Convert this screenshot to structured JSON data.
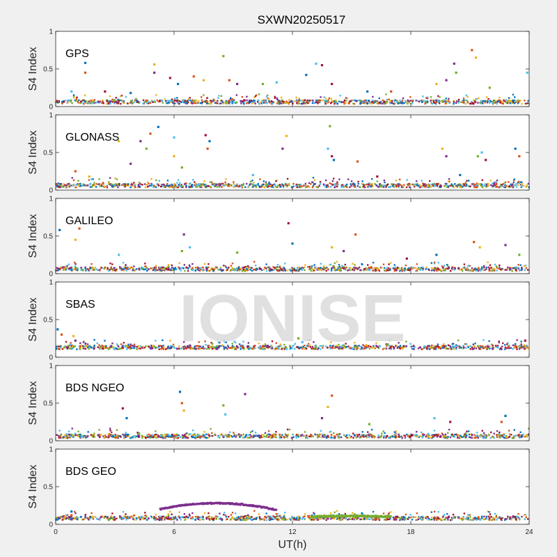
{
  "figure": {
    "title": "SXWN20250517",
    "watermark": "IONISE",
    "xlabel": "UT(h)"
  },
  "chart_data": [
    {
      "type": "scatter",
      "panel_label": "GPS",
      "ylabel": "S4 Index",
      "xlim": [
        0,
        24
      ],
      "ylim": [
        0,
        1
      ],
      "x_ticks": [
        "0",
        "6",
        "12",
        "18",
        "24"
      ],
      "y_ticks": [
        "0",
        "0.5",
        "1"
      ],
      "baseline": 0.06,
      "points": [
        [
          1.5,
          0.58
        ],
        [
          1.5,
          0.45
        ],
        [
          5.0,
          0.56
        ],
        [
          5.0,
          0.45
        ],
        [
          8.5,
          0.67
        ],
        [
          13.2,
          0.57
        ],
        [
          13.5,
          0.55
        ],
        [
          12.7,
          0.42
        ],
        [
          21.1,
          0.75
        ],
        [
          21.3,
          0.65
        ],
        [
          20.2,
          0.57
        ],
        [
          20.3,
          0.45
        ],
        [
          23.9,
          0.45
        ],
        [
          5.8,
          0.38
        ],
        [
          6.2,
          0.3
        ],
        [
          7.0,
          0.4
        ],
        [
          7.5,
          0.35
        ],
        [
          9.2,
          0.3
        ],
        [
          10.5,
          0.3
        ],
        [
          11.2,
          0.32
        ],
        [
          14.0,
          0.3
        ],
        [
          15.8,
          0.2
        ],
        [
          17.0,
          0.2
        ],
        [
          19.3,
          0.3
        ],
        [
          19.8,
          0.35
        ],
        [
          22.0,
          0.25
        ],
        [
          0.8,
          0.2
        ],
        [
          2.5,
          0.2
        ],
        [
          3.8,
          0.18
        ],
        [
          8.8,
          0.35
        ]
      ]
    },
    {
      "type": "scatter",
      "panel_label": "GLONASS",
      "ylabel": "S4 Index",
      "xlim": [
        0,
        24
      ],
      "ylim": [
        0,
        1
      ],
      "x_ticks": [
        "0",
        "6",
        "12",
        "18",
        "24"
      ],
      "y_ticks": [
        "0",
        "0.5",
        "1"
      ],
      "baseline": 0.06,
      "points": [
        [
          5.2,
          0.84
        ],
        [
          4.8,
          0.75
        ],
        [
          3.2,
          0.65
        ],
        [
          4.3,
          0.65
        ],
        [
          4.6,
          0.55
        ],
        [
          6.0,
          0.7
        ],
        [
          7.6,
          0.73
        ],
        [
          7.8,
          0.65
        ],
        [
          7.7,
          0.55
        ],
        [
          11.7,
          0.72
        ],
        [
          11.5,
          0.55
        ],
        [
          13.9,
          0.85
        ],
        [
          13.8,
          0.55
        ],
        [
          14.0,
          0.45
        ],
        [
          14.1,
          0.4
        ],
        [
          15.3,
          0.38
        ],
        [
          19.6,
          0.55
        ],
        [
          19.8,
          0.45
        ],
        [
          21.4,
          0.45
        ],
        [
          21.6,
          0.5
        ],
        [
          21.8,
          0.4
        ],
        [
          23.3,
          0.55
        ],
        [
          23.5,
          0.45
        ],
        [
          6.0,
          0.45
        ],
        [
          3.8,
          0.35
        ],
        [
          6.4,
          0.3
        ],
        [
          10.0,
          0.2
        ],
        [
          16.3,
          0.18
        ],
        [
          20.5,
          0.2
        ],
        [
          1.0,
          0.25
        ],
        [
          1.7,
          0.18
        ]
      ]
    },
    {
      "type": "scatter",
      "panel_label": "GALILEO",
      "ylabel": "S4 Index",
      "xlim": [
        0,
        24
      ],
      "ylim": [
        0,
        1
      ],
      "x_ticks": [
        "0",
        "6",
        "12",
        "18",
        "24"
      ],
      "y_ticks": [
        "0",
        "0.5",
        "1"
      ],
      "baseline": 0.06,
      "points": [
        [
          0.2,
          0.58
        ],
        [
          1.2,
          0.6
        ],
        [
          1.0,
          0.45
        ],
        [
          6.5,
          0.52
        ],
        [
          6.4,
          0.3
        ],
        [
          6.8,
          0.35
        ],
        [
          11.8,
          0.67
        ],
        [
          12.0,
          0.4
        ],
        [
          15.2,
          0.52
        ],
        [
          14.0,
          0.35
        ],
        [
          14.6,
          0.3
        ],
        [
          9.2,
          0.28
        ],
        [
          3.2,
          0.25
        ],
        [
          17.8,
          0.2
        ],
        [
          19.3,
          0.25
        ],
        [
          21.2,
          0.42
        ],
        [
          21.5,
          0.35
        ],
        [
          22.8,
          0.38
        ],
        [
          23.5,
          0.25
        ]
      ]
    },
    {
      "type": "scatter",
      "panel_label": "SBAS",
      "ylabel": "S4 Index",
      "xlim": [
        0,
        24
      ],
      "ylim": [
        0,
        1
      ],
      "x_ticks": [
        "0",
        "6",
        "12",
        "18",
        "24"
      ],
      "y_ticks": [
        "0",
        "0.5",
        "1"
      ],
      "baseline": 0.13,
      "points": [
        [
          0.1,
          0.37
        ],
        [
          0.3,
          0.3
        ],
        [
          0.9,
          0.28
        ],
        [
          1.0,
          0.22
        ],
        [
          12.3,
          0.25
        ],
        [
          12.5,
          0.2
        ],
        [
          23.8,
          0.22
        ]
      ]
    },
    {
      "type": "scatter",
      "panel_label": "BDS NGEO",
      "ylabel": "S4 Index",
      "xlim": [
        0,
        24
      ],
      "ylim": [
        0,
        1
      ],
      "x_ticks": [
        "0",
        "6",
        "12",
        "18",
        "24"
      ],
      "y_ticks": [
        "0",
        "0.5",
        "1"
      ],
      "baseline": 0.06,
      "points": [
        [
          6.3,
          0.65
        ],
        [
          6.4,
          0.5
        ],
        [
          6.5,
          0.4
        ],
        [
          9.6,
          0.62
        ],
        [
          8.5,
          0.47
        ],
        [
          8.6,
          0.35
        ],
        [
          3.4,
          0.43
        ],
        [
          3.6,
          0.3
        ],
        [
          14.0,
          0.6
        ],
        [
          13.8,
          0.45
        ],
        [
          13.5,
          0.3
        ],
        [
          15.9,
          0.22
        ],
        [
          19.2,
          0.3
        ],
        [
          20.0,
          0.25
        ],
        [
          22.8,
          0.33
        ],
        [
          22.6,
          0.25
        ]
      ]
    },
    {
      "type": "scatter",
      "panel_label": "BDS GEO",
      "ylabel": "S4 Index",
      "xlim": [
        0,
        24
      ],
      "ylim": [
        0,
        1
      ],
      "x_ticks": [
        "0",
        "6",
        "12",
        "18",
        "24"
      ],
      "y_ticks": [
        "0",
        "0.5",
        "1"
      ],
      "baseline": 0.08,
      "points": [
        [
          0.8,
          0.17
        ],
        [
          0.8,
          0.12
        ]
      ],
      "arcs": [
        {
          "color_index": 3,
          "x_start": 5.3,
          "x_end": 11.2,
          "y_start": 0.2,
          "y_peak": 0.28,
          "y_end": 0.19
        },
        {
          "color_index": 4,
          "x_start": 13.0,
          "x_end": 17.0,
          "y_start": 0.1,
          "y_peak": 0.11,
          "y_end": 0.1
        }
      ]
    }
  ],
  "series_colors": [
    "#0072BD",
    "#D95319",
    "#EDB120",
    "#7E2F8E",
    "#77AC30",
    "#4DBEEE",
    "#A2142F"
  ]
}
